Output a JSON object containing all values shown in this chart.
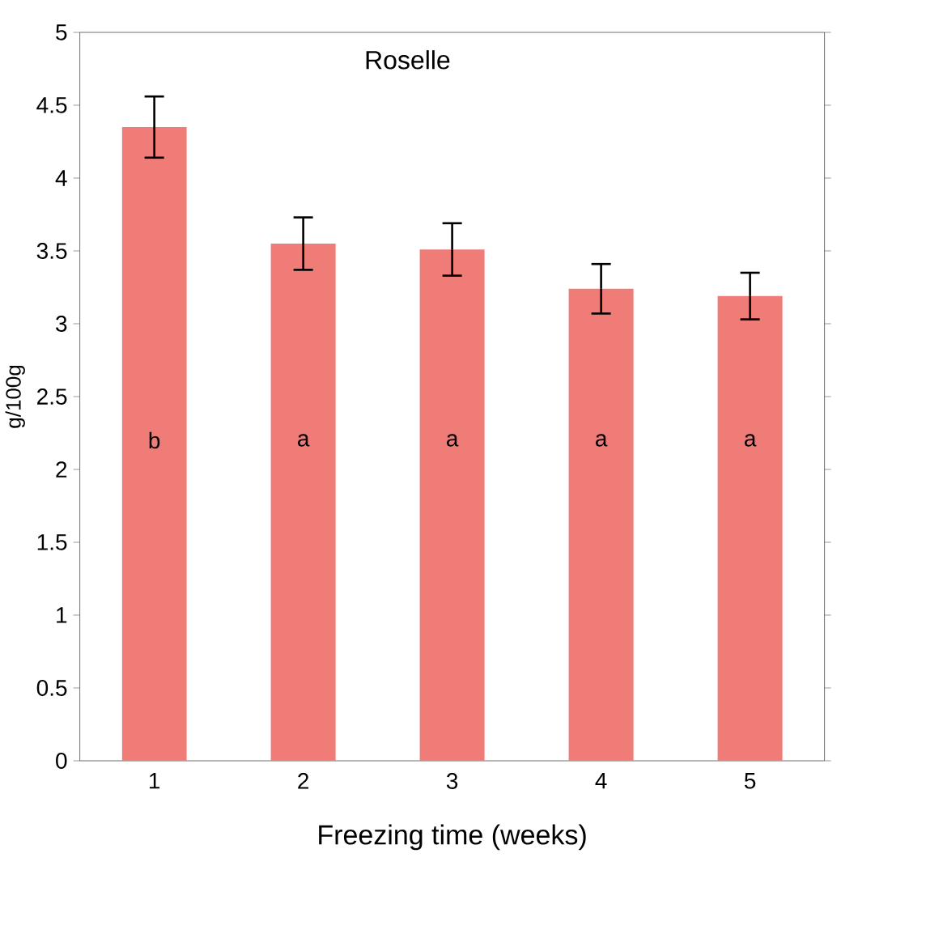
{
  "chart_data": {
    "type": "bar",
    "title": "Roselle",
    "xlabel": "Freezing time (weeks)",
    "ylabel": "g/100g",
    "categories": [
      "1",
      "2",
      "3",
      "4",
      "5"
    ],
    "values": [
      4.35,
      3.55,
      3.51,
      3.24,
      3.19
    ],
    "errors": [
      0.21,
      0.18,
      0.18,
      0.17,
      0.16
    ],
    "color": "#f07c78",
    "ylim": [
      0,
      5
    ],
    "yticks": [
      0,
      0.5,
      1,
      1.5,
      2,
      2.5,
      3,
      3.5,
      4,
      4.5,
      5
    ],
    "annotations": [
      "b",
      "a",
      "a",
      "a",
      "a"
    ]
  }
}
